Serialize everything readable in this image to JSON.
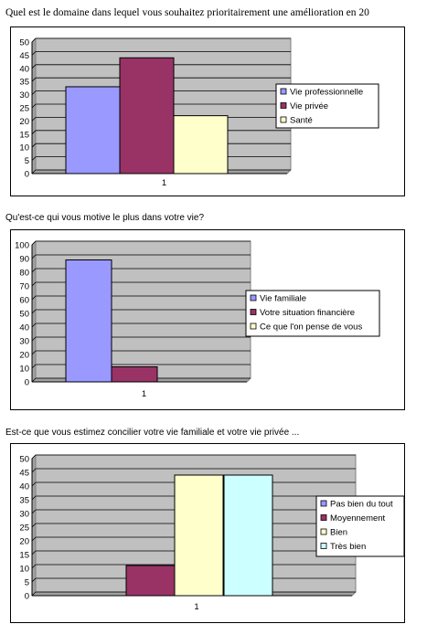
{
  "questions": [
    "Quel est le domaine dans lequel vous souhaitez prioritairement une amélioration en 20",
    "Qu'est-ce qui vous motive le plus dans votre vie?",
    "Est-ce que vous estimez concilier votre vie familiale et votre vie privée ..."
  ],
  "colors": {
    "plot_bg": "#c0c0c0",
    "grid": "#000000",
    "series": [
      "#9999ff",
      "#993366",
      "#ffffcc",
      "#ccffff"
    ]
  },
  "chart_data": [
    {
      "type": "bar",
      "categories": [
        "1"
      ],
      "series": [
        {
          "name": "Vie professionnelle",
          "values": [
            33
          ]
        },
        {
          "name": "Vie privée",
          "values": [
            44
          ]
        },
        {
          "name": "Santé",
          "values": [
            22
          ]
        }
      ],
      "ylim": [
        0,
        50
      ],
      "yticks": [
        0,
        5,
        10,
        15,
        20,
        25,
        30,
        35,
        40,
        45,
        50
      ],
      "grid": true,
      "legend": "right"
    },
    {
      "type": "bar",
      "categories": [
        "1"
      ],
      "series": [
        {
          "name": "Vie familiale",
          "values": [
            89
          ]
        },
        {
          "name": "Votre situation financière",
          "values": [
            11
          ]
        },
        {
          "name": "Ce que l'on pense de vous",
          "values": [
            0
          ]
        }
      ],
      "ylim": [
        0,
        100
      ],
      "yticks": [
        0,
        10,
        20,
        30,
        40,
        50,
        60,
        70,
        80,
        90,
        100
      ],
      "grid": true,
      "legend": "right"
    },
    {
      "type": "bar",
      "categories": [
        "1"
      ],
      "series": [
        {
          "name": "Pas bien du tout",
          "values": [
            0
          ]
        },
        {
          "name": "Moyennement",
          "values": [
            11
          ]
        },
        {
          "name": "Bien",
          "values": [
            44
          ]
        },
        {
          "name": "Très bien",
          "values": [
            44
          ]
        }
      ],
      "ylim": [
        0,
        50
      ],
      "yticks": [
        0,
        5,
        10,
        15,
        20,
        25,
        30,
        35,
        40,
        45,
        50
      ],
      "grid": true,
      "legend": "right"
    }
  ]
}
